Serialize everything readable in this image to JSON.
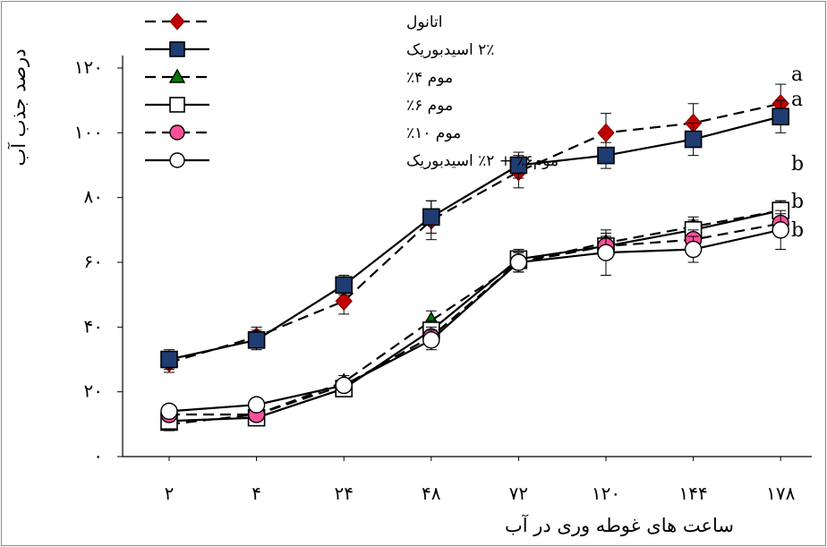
{
  "chart_data": {
    "type": "line",
    "title": "",
    "xlabel": "ساعت های غوطه وری در آب",
    "ylabel": "درصد جذب آب",
    "categories": [
      "۲",
      "۴",
      "۲۴",
      "۴۸",
      "۷۲",
      "۱۲۰",
      "۱۴۴",
      "۱۷۸"
    ],
    "y_ticks": [
      "۰",
      "۲۰",
      "۴۰",
      "۶۰",
      "۸۰",
      "۱۰۰",
      "۱۲۰"
    ],
    "ylim": [
      0,
      120
    ],
    "grid": false,
    "legend_position": "top-left",
    "series": [
      {
        "name": "اتانول",
        "line": "dashed",
        "marker": "diamond",
        "color": "#c00000",
        "values": [
          29,
          37,
          48,
          73,
          88,
          100,
          103,
          109
        ],
        "errors": [
          3,
          3,
          4,
          6,
          5,
          6,
          6,
          6
        ]
      },
      {
        "name": "۲٪ اسیدبوریک",
        "line": "solid",
        "marker": "square",
        "color": "#1f3c73",
        "values": [
          30,
          36,
          53,
          74,
          90,
          93,
          98,
          105
        ],
        "errors": [
          3,
          3,
          3,
          5,
          4,
          4,
          5,
          5
        ]
      },
      {
        "name": "موم ۴٪",
        "line": "dashed",
        "marker": "triangle",
        "color": "#007a00",
        "values": [
          10,
          13,
          23,
          42,
          60,
          66,
          71,
          76
        ],
        "errors": [
          2,
          2,
          2,
          3,
          3,
          3,
          3,
          3
        ]
      },
      {
        "name": "موم ۶٪",
        "line": "solid",
        "marker": "square",
        "color": "#ffffff",
        "values": [
          11,
          12,
          21,
          39,
          61,
          65,
          70,
          76
        ],
        "errors": [
          2,
          2,
          2,
          3,
          3,
          3,
          3,
          3
        ]
      },
      {
        "name": "موم ۱۰٪",
        "line": "dashed",
        "marker": "circle",
        "color": "#ff4f9a",
        "values": [
          13,
          13,
          22,
          37,
          60,
          65,
          67,
          72
        ],
        "errors": [
          2,
          2,
          2,
          3,
          3,
          3,
          3,
          3
        ]
      },
      {
        "name": "موم۶٪ + ۲٪ اسیدبوریک",
        "line": "solid",
        "marker": "circle",
        "color": "#ffffff",
        "values": [
          14,
          16,
          22,
          36,
          60,
          63,
          64,
          70
        ],
        "errors": [
          2,
          2,
          2,
          3,
          3,
          7,
          4,
          6
        ]
      }
    ],
    "annotations": [
      "a",
      "a",
      "b",
      "b",
      "b"
    ]
  }
}
